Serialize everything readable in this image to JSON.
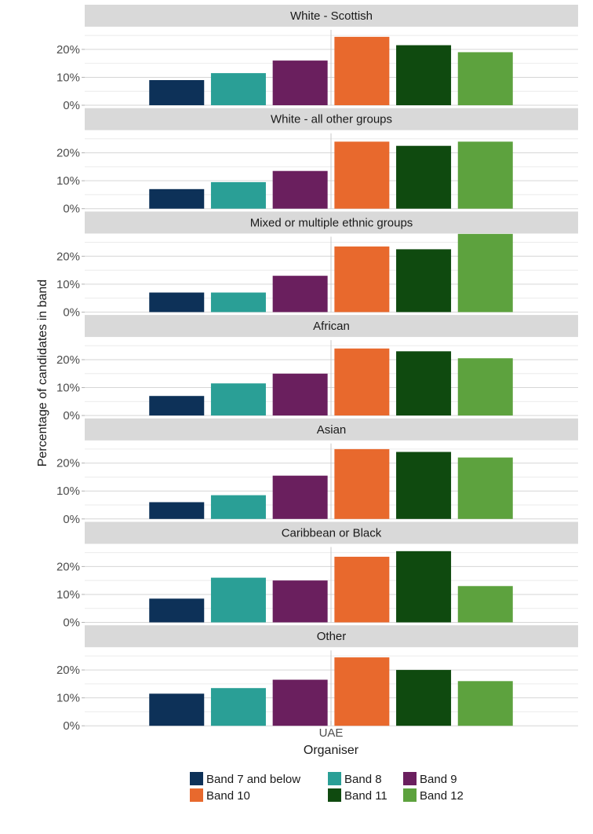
{
  "chart_data": {
    "type": "bar",
    "ylabel": "Percentage of candidates in band",
    "xlabel": "Organiser",
    "x_category": "UAE",
    "y_ticks": [
      "0%",
      "10%",
      "20%"
    ],
    "ylim": [
      0,
      0.27
    ],
    "grid": true,
    "legend_position": "bottom",
    "series": [
      {
        "name": "Band 7 and below",
        "color": "#0d3158"
      },
      {
        "name": "Band 8",
        "color": "#2a9f96"
      },
      {
        "name": "Band 9",
        "color": "#6a1f5e"
      },
      {
        "name": "Band 10",
        "color": "#e8692d"
      },
      {
        "name": "Band 11",
        "color": "#0f4a0f"
      },
      {
        "name": "Band 12",
        "color": "#5da23e"
      }
    ],
    "panels": [
      {
        "title": "White - Scottish",
        "values": [
          0.09,
          0.115,
          0.16,
          0.245,
          0.215,
          0.19
        ]
      },
      {
        "title": "White - all other groups",
        "values": [
          0.07,
          0.095,
          0.135,
          0.24,
          0.225,
          0.24
        ]
      },
      {
        "title": "Mixed or multiple ethnic groups",
        "values": [
          0.07,
          0.07,
          0.13,
          0.235,
          0.225,
          0.28
        ]
      },
      {
        "title": "African",
        "values": [
          0.07,
          0.115,
          0.15,
          0.24,
          0.23,
          0.205
        ]
      },
      {
        "title": "Asian",
        "values": [
          0.06,
          0.085,
          0.155,
          0.25,
          0.24,
          0.22
        ]
      },
      {
        "title": "Caribbean or Black",
        "values": [
          0.085,
          0.16,
          0.15,
          0.235,
          0.255,
          0.13
        ]
      },
      {
        "title": "Other",
        "values": [
          0.115,
          0.135,
          0.165,
          0.245,
          0.2,
          0.16
        ]
      }
    ]
  }
}
